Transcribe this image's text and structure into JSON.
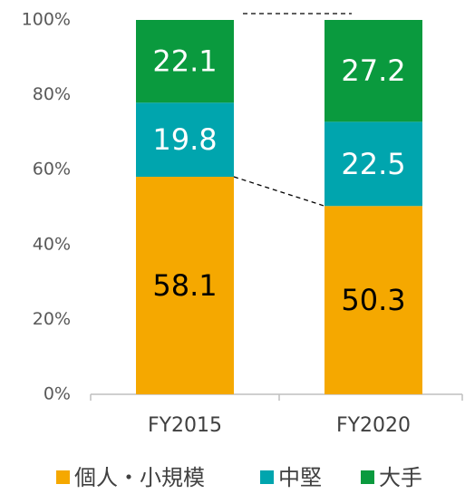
{
  "chart_data": {
    "type": "stacked_bar",
    "categories": [
      "FY2015",
      "FY2020"
    ],
    "series": [
      {
        "name": "個人・小規模",
        "color": "#f5a800",
        "label_color": "#000000",
        "values": [
          58.1,
          50.3
        ]
      },
      {
        "name": "中堅",
        "color": "#00a5ae",
        "label_color": "#ffffff",
        "values": [
          19.8,
          22.5
        ]
      },
      {
        "name": "大手",
        "color": "#0a9a3e",
        "label_color": "#ffffff",
        "values": [
          22.1,
          27.2
        ]
      }
    ],
    "ylim": [
      0,
      100
    ],
    "yticks": [
      {
        "value": 0,
        "label": "0%"
      },
      {
        "value": 20,
        "label": "20%"
      },
      {
        "value": 40,
        "label": "40%"
      },
      {
        "value": 60,
        "label": "60%"
      },
      {
        "value": 80,
        "label": "80%"
      },
      {
        "value": 100,
        "label": "100%"
      }
    ],
    "legend": "bottom"
  }
}
